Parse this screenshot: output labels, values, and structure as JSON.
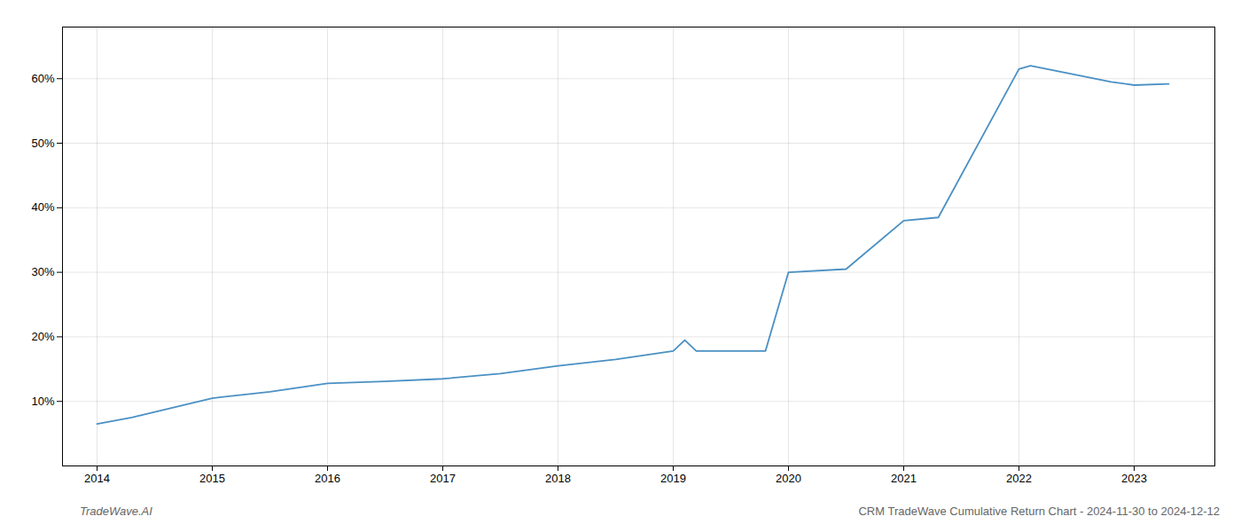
{
  "chart_data": {
    "type": "line",
    "x": [
      2014.0,
      2014.3,
      2015.0,
      2015.5,
      2016.0,
      2016.5,
      2017.0,
      2017.5,
      2018.0,
      2018.5,
      2019.0,
      2019.1,
      2019.2,
      2019.8,
      2020.0,
      2020.5,
      2021.0,
      2021.3,
      2022.0,
      2022.1,
      2022.8,
      2023.0,
      2023.3
    ],
    "values": [
      6.5,
      7.5,
      10.5,
      11.5,
      12.8,
      13.1,
      13.5,
      14.3,
      15.5,
      16.5,
      17.8,
      19.5,
      17.8,
      17.8,
      30.0,
      30.5,
      38.0,
      38.5,
      61.5,
      62.0,
      59.5,
      59.0,
      59.2
    ],
    "color": "#4a90c4",
    "xlim": [
      2013.7,
      2023.7
    ],
    "ylim": [
      0,
      68
    ],
    "xticks": [
      2014,
      2015,
      2016,
      2017,
      2018,
      2019,
      2020,
      2021,
      2022,
      2023
    ],
    "yticks": [
      {
        "value": 10,
        "label": "10%"
      },
      {
        "value": 20,
        "label": "20%"
      },
      {
        "value": 30,
        "label": "30%"
      },
      {
        "value": 40,
        "label": "40%"
      },
      {
        "value": 50,
        "label": "50%"
      },
      {
        "value": 60,
        "label": "60%"
      }
    ],
    "grid": true,
    "annotations": [
      "TradeWave.AI",
      "CRM TradeWave Cumulative Return Chart - 2024-11-30 to 2024-12-12"
    ]
  }
}
